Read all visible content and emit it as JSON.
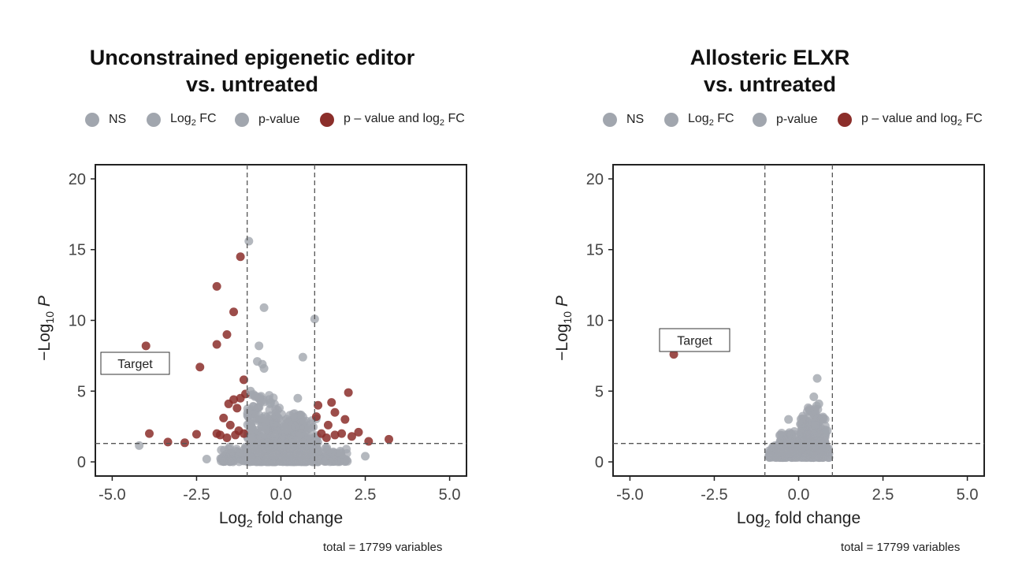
{
  "chart_data": [
    {
      "type": "scatter",
      "title_line1": "Unconstrained epigenetic editor",
      "title_line2": "vs. untreated",
      "xlabel": "Log2 fold change",
      "ylabel": "−Log10 P",
      "xlim": [
        -5.5,
        5.5
      ],
      "ylim": [
        -1,
        21
      ],
      "xticks": [
        "-5.0",
        "-2.5",
        "0.0",
        "2.5",
        "5.0"
      ],
      "yticks": [
        "0",
        "5",
        "10",
        "15",
        "20"
      ],
      "fc_cutoff": [
        -1,
        1
      ],
      "p_cutoff": 1.3,
      "legend": [
        "NS",
        "Log2 FC",
        "p-value",
        "p – value and log2 FC"
      ],
      "colors": {
        "ns": "#a1a6ae",
        "fc": "#a1a6ae",
        "p": "#a1a6ae",
        "both": "#8b2e2a"
      },
      "caption": "total = 17799 variables",
      "annotation": {
        "label": "Target"
      },
      "series": [
        {
          "name": "p – value and log2 FC",
          "points": [
            [
              -4.0,
              8.2
            ],
            [
              -3.9,
              2.0
            ],
            [
              -3.35,
              1.4
            ],
            [
              -2.85,
              1.35
            ],
            [
              -2.4,
              6.7
            ],
            [
              -2.5,
              1.95
            ],
            [
              -1.9,
              12.4
            ],
            [
              -1.9,
              8.3
            ],
            [
              -1.6,
              9.0
            ],
            [
              -1.4,
              10.6
            ],
            [
              -1.2,
              14.5
            ],
            [
              -1.1,
              5.8
            ],
            [
              -1.55,
              4.1
            ],
            [
              -1.2,
              4.5
            ],
            [
              -1.4,
              4.4
            ],
            [
              -1.3,
              3.8
            ],
            [
              -1.7,
              3.1
            ],
            [
              -1.05,
              4.8
            ],
            [
              -1.5,
              2.6
            ],
            [
              -1.9,
              2.0
            ],
            [
              -1.25,
              2.2
            ],
            [
              -1.1,
              2.0
            ],
            [
              -1.6,
              1.7
            ],
            [
              -1.35,
              1.9
            ],
            [
              -1.8,
              1.9
            ],
            [
              1.1,
              4.0
            ],
            [
              1.05,
              3.2
            ],
            [
              1.5,
              4.2
            ],
            [
              1.6,
              3.5
            ],
            [
              1.4,
              2.6
            ],
            [
              1.9,
              3.0
            ],
            [
              2.0,
              4.9
            ],
            [
              2.3,
              2.1
            ],
            [
              2.1,
              1.8
            ],
            [
              1.8,
              2.0
            ],
            [
              1.2,
              2.0
            ],
            [
              1.6,
              1.9
            ],
            [
              3.2,
              1.6
            ],
            [
              2.6,
              1.45
            ],
            [
              1.35,
              1.7
            ]
          ]
        },
        {
          "name": "NS",
          "points": [
            [
              -0.95,
              15.6
            ],
            [
              -0.5,
              10.9
            ],
            [
              -0.65,
              8.2
            ],
            [
              -0.7,
              7.1
            ],
            [
              -0.55,
              6.9
            ],
            [
              -0.5,
              6.6
            ],
            [
              1.0,
              10.1
            ],
            [
              0.65,
              7.4
            ],
            [
              0.5,
              4.5
            ],
            [
              -4.2,
              1.15
            ],
            [
              -2.2,
              0.2
            ],
            [
              2.5,
              0.4
            ],
            [
              -0.3,
              4.2
            ],
            [
              -0.9,
              5.0
            ]
          ]
        }
      ],
      "cloud": [
        {
          "x": [
            -1.0,
            0.0
          ],
          "y": [
            0.0,
            5.0
          ],
          "n": 320
        },
        {
          "x": [
            0.0,
            1.1
          ],
          "y": [
            0.0,
            3.6
          ],
          "n": 260
        },
        {
          "x": [
            -1.8,
            2.0
          ],
          "y": [
            0.0,
            1.2
          ],
          "n": 260
        }
      ]
    },
    {
      "type": "scatter",
      "title_line1": "Allosteric ELXR",
      "title_line2": "vs. untreated",
      "xlabel": "Log2 fold change",
      "ylabel": "−Log10 P",
      "xlim": [
        -5.5,
        5.5
      ],
      "ylim": [
        -1,
        21
      ],
      "xticks": [
        "-5.0",
        "-2.5",
        "0.0",
        "2.5",
        "5.0"
      ],
      "yticks": [
        "0",
        "5",
        "10",
        "15",
        "20"
      ],
      "fc_cutoff": [
        -1,
        1
      ],
      "p_cutoff": 1.3,
      "legend": [
        "NS",
        "Log2 FC",
        "p-value",
        "p – value and log2 FC"
      ],
      "colors": {
        "ns": "#a1a6ae",
        "fc": "#a1a6ae",
        "p": "#a1a6ae",
        "both": "#8b2e2a"
      },
      "caption": "total = 17799 variables",
      "annotation": {
        "label": "Target"
      },
      "series": [
        {
          "name": "p – value and log2 FC",
          "points": [
            [
              -3.7,
              7.6
            ]
          ]
        },
        {
          "name": "NS",
          "points": [
            [
              0.55,
              5.9
            ],
            [
              0.45,
              4.6
            ],
            [
              0.6,
              4.1
            ],
            [
              0.85,
              2.2
            ],
            [
              -0.3,
              3.0
            ]
          ]
        }
      ],
      "cloud": [
        {
          "x": [
            -0.9,
            0.9
          ],
          "y": [
            0.3,
            1.4
          ],
          "n": 300
        },
        {
          "x": [
            0.05,
            0.8
          ],
          "y": [
            1.0,
            4.0
          ],
          "n": 220
        },
        {
          "x": [
            -0.6,
            0.0
          ],
          "y": [
            0.6,
            2.2
          ],
          "n": 90
        }
      ]
    }
  ]
}
